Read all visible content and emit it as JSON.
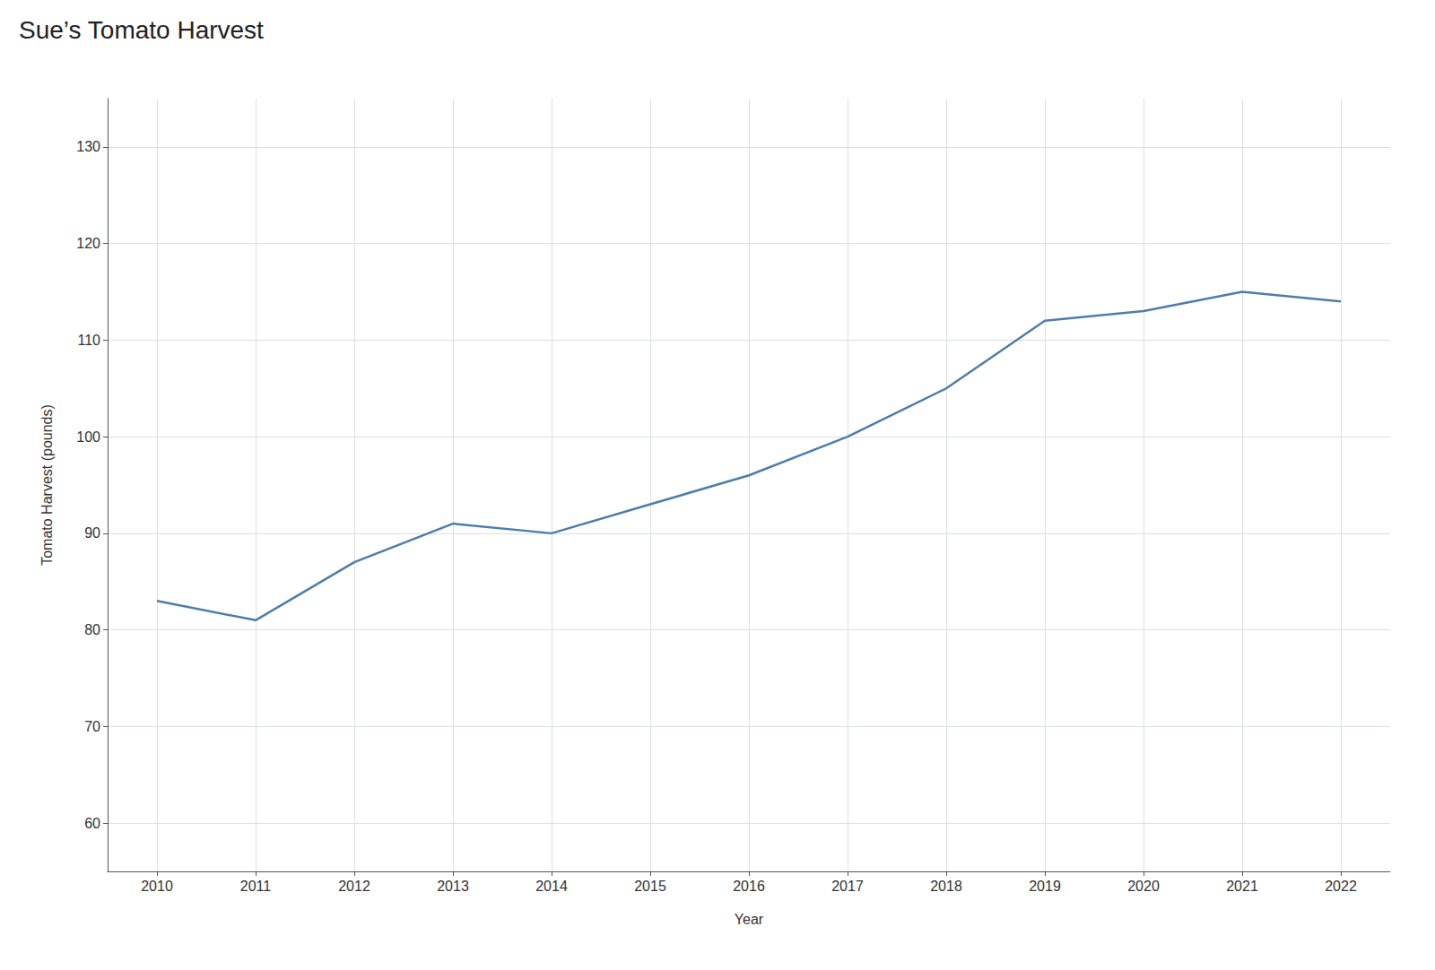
{
  "chart_data": {
    "type": "line",
    "title": "Sue’s Tomato Harvest",
    "xlabel": "Year",
    "ylabel": "Tomato Harvest (pounds)",
    "x": [
      2010,
      2011,
      2012,
      2013,
      2014,
      2015,
      2016,
      2017,
      2018,
      2019,
      2020,
      2021,
      2022
    ],
    "values": [
      83,
      81,
      87,
      91,
      90,
      93,
      96,
      100,
      105,
      112,
      113,
      115,
      114
    ],
    "color": "#4d7dab",
    "xlim": [
      2009.5,
      2022.5
    ],
    "xticks": [
      2010,
      2011,
      2012,
      2013,
      2014,
      2015,
      2016,
      2017,
      2018,
      2019,
      2020,
      2021,
      2022
    ],
    "ylim": [
      55,
      135
    ],
    "yticks": [
      60,
      70,
      80,
      90,
      100,
      110,
      120,
      130
    ],
    "grid": true
  }
}
